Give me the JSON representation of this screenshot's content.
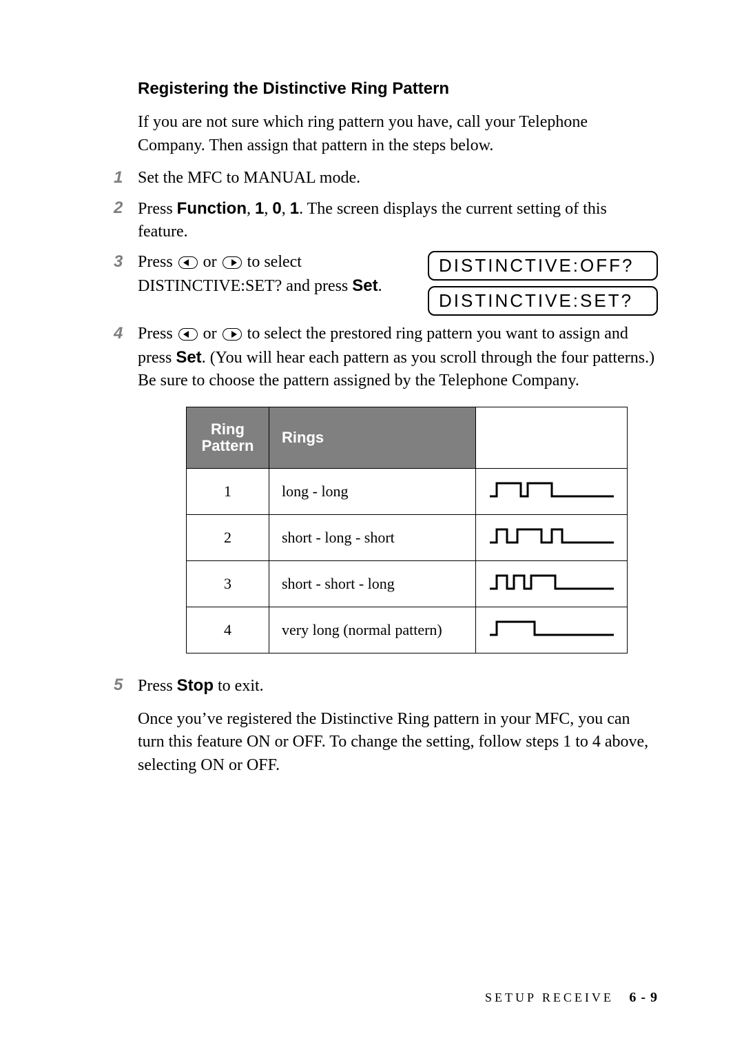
{
  "title": "Registering the Distinctive Ring Pattern",
  "intro": "If you are not sure which ring pattern you have, call your Telephone Company. Then assign that pattern in the steps below.",
  "steps": {
    "s1": "Set the MFC to MANUAL mode.",
    "s2_a": "Press ",
    "s2_b": "Function",
    "s2_c": ", ",
    "s2_d": "1",
    "s2_e": ", ",
    "s2_f": "0",
    "s2_g": ", ",
    "s2_h": "1",
    "s2_i": ". The screen displays the current setting of this feature.",
    "s3_a": "Press ",
    "s3_b": " or ",
    "s3_c": " to select DISTINCTIVE:SET? and press ",
    "s3_d": "Set",
    "s3_e": ".",
    "s4_a": "Press ",
    "s4_b": " or ",
    "s4_c": " to select the prestored ring pattern you want to assign and press ",
    "s4_d": "Set",
    "s4_e": ". (You will hear each pattern as you scroll through the four patterns.) Be sure to choose the pattern assigned by the Telephone Company.",
    "s5_a": "Press ",
    "s5_b": "Stop",
    "s5_c": " to exit."
  },
  "lcd": {
    "line1": "DISTINCTIVE:OFF?",
    "line2": "DISTINCTIVE:SET?"
  },
  "table": {
    "headers": {
      "pattern": "Ring Pattern",
      "rings": "Rings"
    },
    "rows": [
      {
        "n": "1",
        "desc": "long - long",
        "wave": "_/‾‾\\_/‾‾\\___"
      },
      {
        "n": "2",
        "desc": "short - long - short",
        "wave": "_/‾\\_/‾‾\\_/‾\\___"
      },
      {
        "n": "3",
        "desc": "short - short - long",
        "wave": "_/‾\\_/‾\\_/‾‾\\___"
      },
      {
        "n": "4",
        "desc": "very long (normal pattern)",
        "wave": "_/‾‾‾‾\\______"
      }
    ],
    "pulses": {
      "1": [
        [
          10,
          35
        ],
        [
          55,
          35
        ]
      ],
      "2": [
        [
          10,
          15
        ],
        [
          40,
          35
        ],
        [
          90,
          15
        ]
      ],
      "3": [
        [
          10,
          15
        ],
        [
          35,
          15
        ],
        [
          60,
          35
        ]
      ],
      "4": [
        [
          10,
          55
        ]
      ]
    }
  },
  "after": "Once you’ve registered the Distinctive Ring pattern in your MFC, you can turn this feature ON or OFF.  To change the setting, follow steps 1 to 4 above, selecting ON or OFF.",
  "footer": {
    "section": "SETUP RECEIVE",
    "page": "6 - 9"
  },
  "colors": {
    "step_num": "#7f7f7f",
    "th_bg": "#808080",
    "text": "#000000"
  }
}
